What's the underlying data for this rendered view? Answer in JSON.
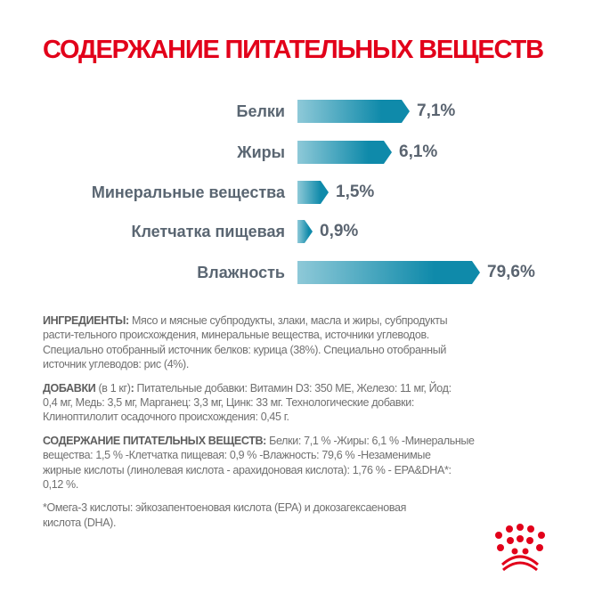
{
  "title": "СОДЕРЖАНИЕ ПИТАТЕЛЬНЫХ ВЕЩЕСТВ",
  "chart_data": {
    "type": "bar",
    "orientation": "horizontal",
    "categories": [
      "Белки",
      "Жиры",
      "Минеральные вещества",
      "Клетчатка пищевая",
      "Влажность"
    ],
    "values": [
      7.1,
      6.1,
      1.5,
      0.9,
      79.6
    ],
    "value_labels": [
      "7,1%",
      "6,1%",
      "1,5%",
      "0,9%",
      "79,6%"
    ],
    "unit": "%",
    "colors": {
      "bar_start": "#8ec9d8",
      "bar_end": "#0f8aaa",
      "label": "#5a6672"
    }
  },
  "ingredients": {
    "heading": "ИНГРЕДИЕНТЫ:",
    "lines": [
      " Мясо и мясные субпродукты, злаки, масла и жиры, субпродукты",
      "расти-тельного происхождения, минеральные вещества, источники углеводов.",
      "Специально отобранный источник белков: курица (38%). Специально отобранный",
      "источник углеводов: рис (4%)."
    ]
  },
  "additives": {
    "heading": "ДОБАВКИ",
    "heading_note": " (в 1 кг)",
    "colon": ":",
    "lines": [
      " Питательные добавки: Витамин D3: 350 МЕ, Железо: 11 мг, Йод:",
      "0,4 мг, Медь: 3,5 мг, Марганец: 3,3 мг, Цинк: 33 мг. Технологические добавки:",
      "Клиноптилолит осадочного происхождения: 0,45 г."
    ]
  },
  "nutrients": {
    "heading": "СОДЕРЖАНИЕ ПИТАТЕЛЬНЫХ ВЕЩЕСТВ:",
    "lines": [
      " Белки: 7,1 % -Жиры: 6,1 % -Минеральные",
      "вещества: 1,5 % -Клетчатка пищевая: 0,9 % -Влажность: 79,6 % -Незаменимые",
      "жирные кислоты (линолевая кислота - арахидоновая кислота): 1,76 % - EPA&DHA*:",
      "0,12 %."
    ]
  },
  "footnote": {
    "lines": [
      "*Омега-3 кислоты: эйкозапентоеновая кислота (EPA) и докозагексаеновая",
      "кислота (DHA)."
    ]
  },
  "logo": {
    "name": "crown-logo",
    "color": "#e2001a"
  }
}
